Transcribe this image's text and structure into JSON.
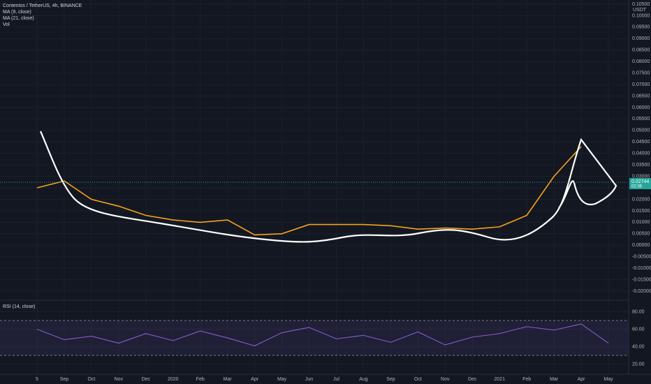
{
  "chart_data": [
    {
      "type": "line",
      "title": "Contentos / TetherUS, 4h, BINANCE",
      "indicators": [
        "MA (9, close)",
        "MA (21, close)",
        "Vol"
      ],
      "currency": "USDT",
      "categories": [
        "5",
        "Sep",
        "Oct",
        "Nov",
        "Dec",
        "2020",
        "Feb",
        "Mar",
        "Apr",
        "May",
        "Jun",
        "Jul",
        "Aug",
        "Sep",
        "Oct",
        "Nov",
        "Dec",
        "2021",
        "Feb",
        "Mar",
        "Apr",
        "May"
      ],
      "series": [
        {
          "name": "close",
          "color": "#f7a21b",
          "values": [
            0.025,
            0.028,
            0.02,
            0.017,
            0.013,
            0.011,
            0.01,
            0.011,
            0.0045,
            0.005,
            0.009,
            0.009,
            0.009,
            0.0085,
            0.007,
            0.0075,
            0.007,
            0.008,
            0.013,
            0.03,
            0.043,
            null
          ]
        }
      ],
      "last_price": 0.02744,
      "countdown": "02:36",
      "ylim": [
        -0.02,
        0.105
      ],
      "yticks": [
        {
          "value": 0.105,
          "label": "0.10500"
        },
        {
          "value": 0.1,
          "label": "0.10000"
        },
        {
          "value": 0.095,
          "label": "0.09500"
        },
        {
          "value": 0.09,
          "label": "0.09000"
        },
        {
          "value": 0.085,
          "label": "0.08500"
        },
        {
          "value": 0.08,
          "label": "0.08000"
        },
        {
          "value": 0.075,
          "label": "0.07500"
        },
        {
          "value": 0.07,
          "label": "0.07000"
        },
        {
          "value": 0.065,
          "label": "0.06500"
        },
        {
          "value": 0.06,
          "label": "0.06000"
        },
        {
          "value": 0.055,
          "label": "0.05500"
        },
        {
          "value": 0.05,
          "label": "0.05000"
        },
        {
          "value": 0.045,
          "label": "0.04500"
        },
        {
          "value": 0.04,
          "label": "0.04000"
        },
        {
          "value": 0.035,
          "label": "0.03500"
        },
        {
          "value": 0.03,
          "label": "0.03000"
        },
        {
          "value": 0.025,
          "label": "0.02500"
        },
        {
          "value": 0.02,
          "label": "0.02000"
        },
        {
          "value": 0.015,
          "label": "0.01500"
        },
        {
          "value": 0.01,
          "label": "0.01000"
        },
        {
          "value": 0.005,
          "label": "0.00500"
        },
        {
          "value": 0,
          "label": "0.00000"
        },
        {
          "value": -0.005,
          "label": "-0.00500"
        },
        {
          "value": -0.01,
          "label": "-0.01000"
        },
        {
          "value": -0.015,
          "label": "-0.01500"
        },
        {
          "value": -0.02,
          "label": "-0.02000"
        }
      ],
      "grid": true
    },
    {
      "type": "line",
      "title": "RSI (14, close)",
      "series": [
        {
          "name": "RSI",
          "color": "#7e57c2",
          "values": [
            60,
            48,
            52,
            44,
            55,
            47,
            58,
            50,
            41,
            56,
            62,
            49,
            53,
            45,
            57,
            42,
            51,
            55,
            63,
            59,
            66,
            44
          ]
        }
      ],
      "ylim": [
        10,
        90
      ],
      "yticks": [
        {
          "value": 20,
          "label": "20.00"
        },
        {
          "value": 40,
          "label": "40.00"
        },
        {
          "value": 60,
          "label": "60.00"
        },
        {
          "value": 80,
          "label": "80.00"
        }
      ],
      "levels": [
        30,
        70
      ]
    }
  ]
}
